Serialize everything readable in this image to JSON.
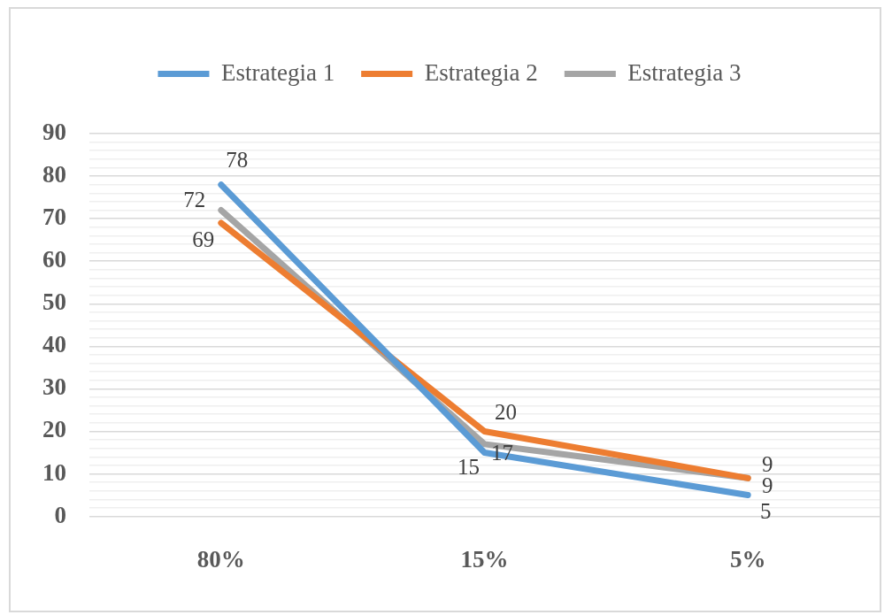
{
  "chart_data": {
    "type": "line",
    "categories": [
      "80%",
      "15%",
      "5%"
    ],
    "series": [
      {
        "name": "Estrategia 1",
        "color": "#5b9bd5",
        "values": [
          78,
          15,
          5
        ]
      },
      {
        "name": "Estrategia 2",
        "color": "#ed7d31",
        "values": [
          69,
          20,
          9
        ]
      },
      {
        "name": "Estrategia 3",
        "color": "#a5a5a5",
        "values": [
          72,
          17,
          9
        ]
      }
    ],
    "ylim": [
      0,
      90
    ],
    "yticks": [
      0,
      {
        "value": 2,
        "label": null
      },
      {
        "value": 4,
        "label": null
      },
      {
        "value": 6,
        "label": null
      },
      {
        "value": 8,
        "label": null
      },
      10,
      {
        "value": 12,
        "label": null
      },
      {
        "value": 14,
        "label": null
      },
      {
        "value": 16,
        "label": null
      },
      {
        "value": 18,
        "label": null
      },
      20,
      {
        "value": 22,
        "label": null
      },
      {
        "value": 24,
        "label": null
      },
      {
        "value": 26,
        "label": null
      },
      {
        "value": 28,
        "label": null
      },
      30,
      {
        "value": 32,
        "label": null
      },
      {
        "value": 34,
        "label": null
      },
      {
        "value": 36,
        "label": null
      },
      {
        "value": 38,
        "label": null
      },
      40,
      {
        "value": 42,
        "label": null
      },
      {
        "value": 44,
        "label": null
      },
      {
        "value": 46,
        "label": null
      },
      {
        "value": 48,
        "label": null
      },
      50,
      {
        "value": 52,
        "label": null
      },
      {
        "value": 54,
        "label": null
      },
      {
        "value": 56,
        "label": null
      },
      {
        "value": 58,
        "label": null
      },
      60,
      {
        "value": 62,
        "label": null
      },
      {
        "value": 64,
        "label": null
      },
      {
        "value": 66,
        "label": null
      },
      {
        "value": 68,
        "label": null
      },
      70,
      {
        "value": 72,
        "label": null
      },
      {
        "value": 74,
        "label": null
      },
      {
        "value": 76,
        "label": null
      },
      {
        "value": 78,
        "label": null
      },
      80,
      {
        "value": 82,
        "label": null
      },
      {
        "value": 84,
        "label": null
      },
      {
        "value": 86,
        "label": null
      },
      {
        "value": 88,
        "label": null
      },
      90
    ],
    "grid": "y",
    "legend": "top",
    "marker": "none",
    "line_style": "solid",
    "data_labels": true
  }
}
